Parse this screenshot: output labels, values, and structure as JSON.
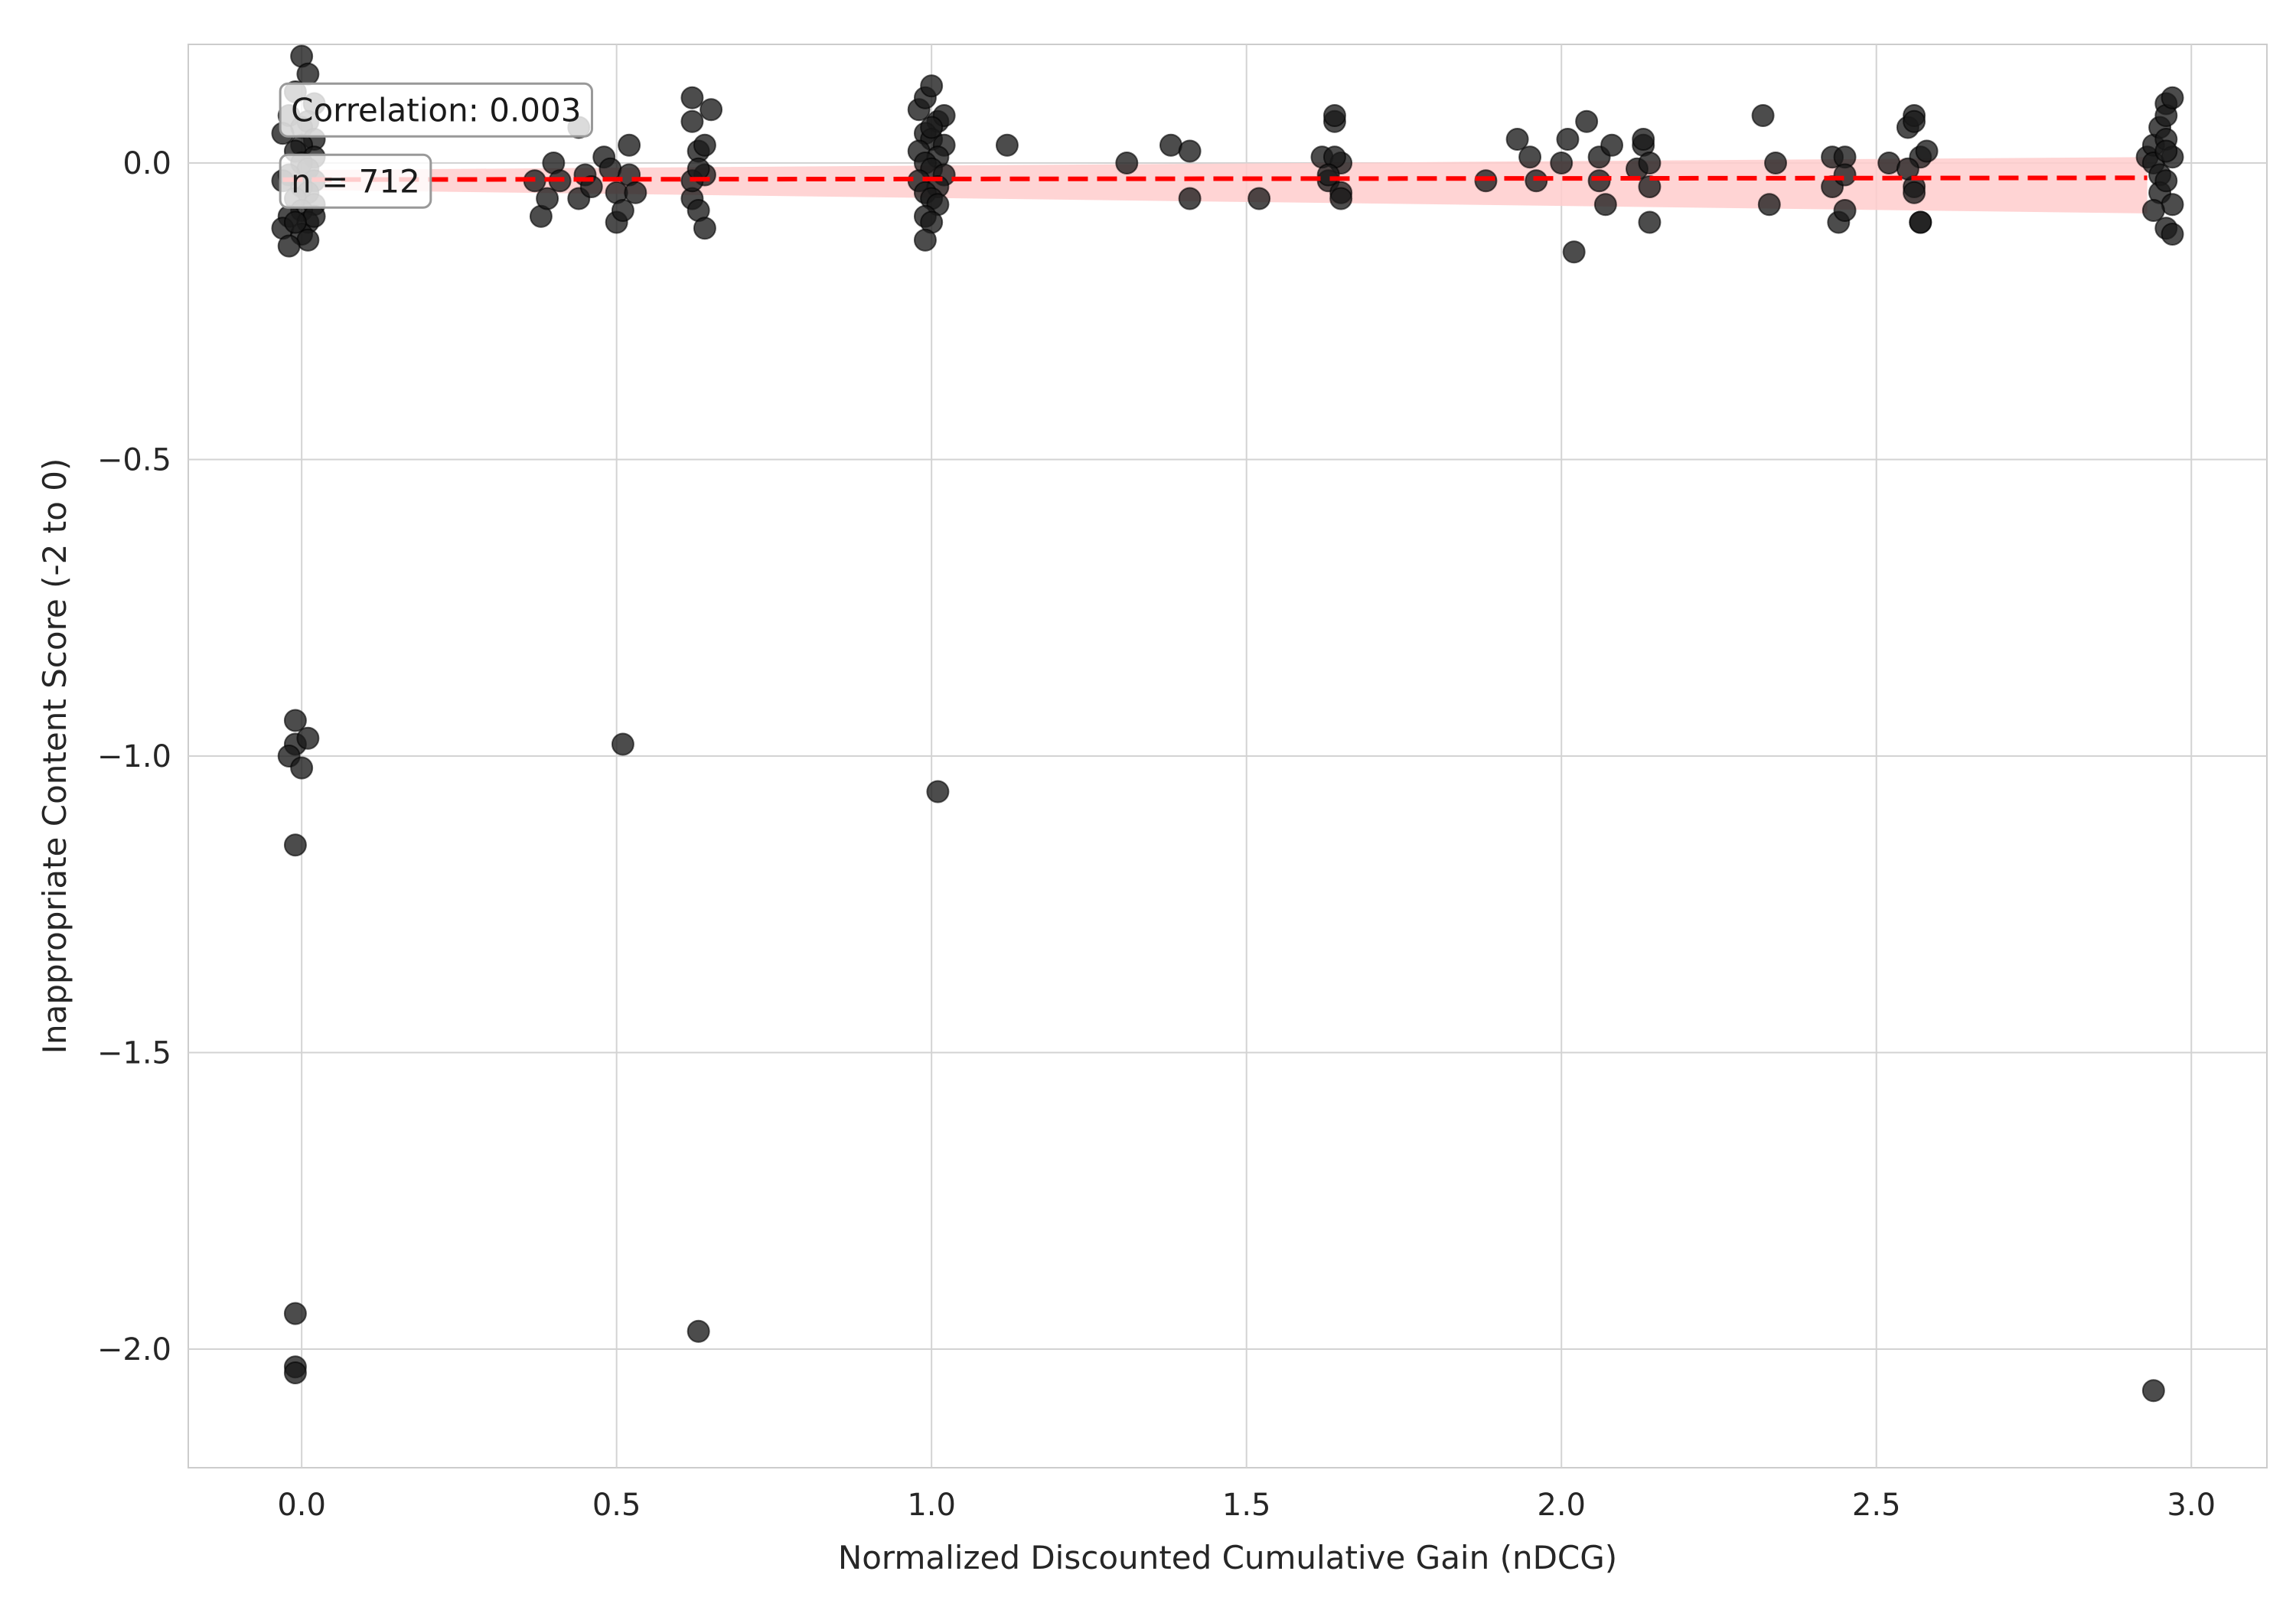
{
  "chart_data": {
    "type": "scatter",
    "title": "",
    "xlabel": "Normalized Discounted Cumulative Gain (nDCG)",
    "ylabel": "Inappropriate Content Score (-2 to 0)",
    "xlim": [
      -0.18,
      3.12
    ],
    "ylim": [
      -2.2,
      0.2
    ],
    "xticks": [
      0.0,
      0.5,
      1.0,
      1.5,
      2.0,
      2.5,
      3.0
    ],
    "xtick_labels": [
      "0.0",
      "0.5",
      "1.0",
      "1.5",
      "2.0",
      "2.5",
      "3.0"
    ],
    "yticks": [
      0.0,
      -0.5,
      -1.0,
      -1.5,
      -2.0
    ],
    "ytick_labels": [
      "0.0",
      "−0.5",
      "−1.0",
      "−1.5",
      "−2.0"
    ],
    "grid": true,
    "annotations": [
      {
        "text": "Correlation: 0.003",
        "x": 0.0,
        "y": 0.09
      },
      {
        "text": "n = 712",
        "x": 0.0,
        "y": -0.03
      }
    ],
    "trend": {
      "style": "dashed",
      "color": "#ff0000",
      "x": [
        -0.03,
        2.93
      ],
      "y": [
        -0.028,
        -0.025
      ],
      "ci_lower": [
        -0.045,
        -0.085
      ],
      "ci_upper": [
        -0.012,
        0.01
      ],
      "ci_color": "#ffcccc"
    },
    "point_color": "#1a1a1a",
    "points": [
      [
        0.0,
        0.18
      ],
      [
        0.01,
        0.15
      ],
      [
        -0.01,
        0.12
      ],
      [
        0.02,
        0.1
      ],
      [
        -0.02,
        0.08
      ],
      [
        0.01,
        0.07
      ],
      [
        0.0,
        0.06
      ],
      [
        -0.03,
        0.05
      ],
      [
        0.02,
        0.04
      ],
      [
        0.0,
        0.03
      ],
      [
        -0.01,
        0.02
      ],
      [
        0.02,
        0.01
      ],
      [
        0.0,
        0.0
      ],
      [
        0.01,
        -0.01
      ],
      [
        -0.02,
        -0.02
      ],
      [
        0.02,
        -0.03
      ],
      [
        -0.03,
        -0.03
      ],
      [
        0.0,
        -0.04
      ],
      [
        0.01,
        -0.05
      ],
      [
        -0.01,
        -0.06
      ],
      [
        0.02,
        -0.07
      ],
      [
        0.0,
        -0.08
      ],
      [
        -0.02,
        -0.09
      ],
      [
        0.01,
        -0.1
      ],
      [
        -0.03,
        -0.11
      ],
      [
        0.0,
        -0.12
      ],
      [
        0.01,
        -0.13
      ],
      [
        -0.02,
        -0.14
      ],
      [
        0.02,
        -0.09
      ],
      [
        -0.01,
        -0.1
      ],
      [
        -0.01,
        -0.94
      ],
      [
        -0.01,
        -0.98
      ],
      [
        0.01,
        -0.97
      ],
      [
        -0.02,
        -1.0
      ],
      [
        0.0,
        -1.02
      ],
      [
        -0.01,
        -1.15
      ],
      [
        -0.01,
        -1.94
      ],
      [
        -0.01,
        -2.03
      ],
      [
        -0.01,
        -2.04
      ],
      [
        0.37,
        -0.03
      ],
      [
        0.38,
        -0.09
      ],
      [
        0.39,
        -0.06
      ],
      [
        0.4,
        0.0
      ],
      [
        0.41,
        -0.03
      ],
      [
        0.44,
        0.06
      ],
      [
        0.44,
        -0.06
      ],
      [
        0.45,
        -0.02
      ],
      [
        0.46,
        -0.04
      ],
      [
        0.48,
        0.01
      ],
      [
        0.49,
        -0.01
      ],
      [
        0.5,
        -0.05
      ],
      [
        0.5,
        -0.1
      ],
      [
        0.51,
        -0.08
      ],
      [
        0.52,
        0.03
      ],
      [
        0.52,
        -0.02
      ],
      [
        0.53,
        -0.05
      ],
      [
        0.51,
        -0.98
      ],
      [
        0.62,
        0.11
      ],
      [
        0.62,
        0.07
      ],
      [
        0.63,
        0.02
      ],
      [
        0.62,
        -0.06
      ],
      [
        0.63,
        -0.08
      ],
      [
        0.64,
        -0.11
      ],
      [
        0.64,
        0.03
      ],
      [
        0.64,
        -0.02
      ],
      [
        0.62,
        -0.03
      ],
      [
        0.65,
        0.09
      ],
      [
        0.63,
        -0.01
      ],
      [
        0.63,
        -1.97
      ],
      [
        0.98,
        0.09
      ],
      [
        0.99,
        0.11
      ],
      [
        1.0,
        0.13
      ],
      [
        1.01,
        0.07
      ],
      [
        0.99,
        0.05
      ],
      [
        1.0,
        0.04
      ],
      [
        1.02,
        0.03
      ],
      [
        0.98,
        0.02
      ],
      [
        1.01,
        0.01
      ],
      [
        0.99,
        0.0
      ],
      [
        1.0,
        -0.01
      ],
      [
        1.02,
        -0.02
      ],
      [
        0.98,
        -0.03
      ],
      [
        1.01,
        -0.04
      ],
      [
        0.99,
        -0.05
      ],
      [
        1.0,
        -0.06
      ],
      [
        1.01,
        -0.07
      ],
      [
        0.99,
        -0.09
      ],
      [
        1.0,
        -0.1
      ],
      [
        0.99,
        -0.13
      ],
      [
        1.02,
        0.08
      ],
      [
        1.0,
        0.06
      ],
      [
        1.01,
        -1.06
      ],
      [
        1.12,
        0.03
      ],
      [
        1.31,
        0.0
      ],
      [
        1.38,
        0.03
      ],
      [
        1.41,
        0.02
      ],
      [
        1.41,
        -0.06
      ],
      [
        1.52,
        -0.06
      ],
      [
        1.62,
        0.01
      ],
      [
        1.63,
        -0.03
      ],
      [
        1.64,
        0.07
      ],
      [
        1.64,
        0.08
      ],
      [
        1.65,
        0.0
      ],
      [
        1.65,
        -0.05
      ],
      [
        1.65,
        -0.06
      ],
      [
        1.64,
        0.01
      ],
      [
        1.63,
        -0.02
      ],
      [
        1.88,
        -0.03
      ],
      [
        1.93,
        0.04
      ],
      [
        1.95,
        0.01
      ],
      [
        1.96,
        -0.03
      ],
      [
        2.0,
        0.0
      ],
      [
        2.01,
        0.04
      ],
      [
        2.02,
        -0.15
      ],
      [
        2.04,
        0.07
      ],
      [
        2.06,
        0.01
      ],
      [
        2.06,
        -0.03
      ],
      [
        2.07,
        -0.07
      ],
      [
        2.08,
        0.03
      ],
      [
        2.12,
        -0.01
      ],
      [
        2.13,
        0.03
      ],
      [
        2.13,
        0.04
      ],
      [
        2.14,
        -0.04
      ],
      [
        2.14,
        -0.1
      ],
      [
        2.14,
        0.0
      ],
      [
        2.32,
        0.08
      ],
      [
        2.33,
        -0.07
      ],
      [
        2.34,
        0.0
      ],
      [
        2.43,
        -0.04
      ],
      [
        2.43,
        0.01
      ],
      [
        2.44,
        -0.1
      ],
      [
        2.45,
        0.01
      ],
      [
        2.45,
        -0.08
      ],
      [
        2.45,
        -0.02
      ],
      [
        2.52,
        0.0
      ],
      [
        2.55,
        0.06
      ],
      [
        2.56,
        0.08
      ],
      [
        2.56,
        0.07
      ],
      [
        2.56,
        -0.04
      ],
      [
        2.56,
        -0.05
      ],
      [
        2.57,
        0.01
      ],
      [
        2.57,
        -0.1
      ],
      [
        2.57,
        -0.1
      ],
      [
        2.58,
        0.02
      ],
      [
        2.55,
        -0.01
      ],
      [
        2.93,
        0.01
      ],
      [
        2.94,
        0.03
      ],
      [
        2.94,
        0.0
      ],
      [
        2.95,
        -0.02
      ],
      [
        2.95,
        -0.05
      ],
      [
        2.95,
        0.06
      ],
      [
        2.96,
        0.1
      ],
      [
        2.96,
        0.08
      ],
      [
        2.96,
        0.04
      ],
      [
        2.97,
        0.11
      ],
      [
        2.97,
        0.01
      ],
      [
        2.97,
        -0.07
      ],
      [
        2.96,
        -0.11
      ],
      [
        2.97,
        -0.12
      ],
      [
        2.96,
        -0.03
      ],
      [
        2.94,
        -0.08
      ],
      [
        2.96,
        0.02
      ],
      [
        2.94,
        -2.07
      ]
    ]
  }
}
